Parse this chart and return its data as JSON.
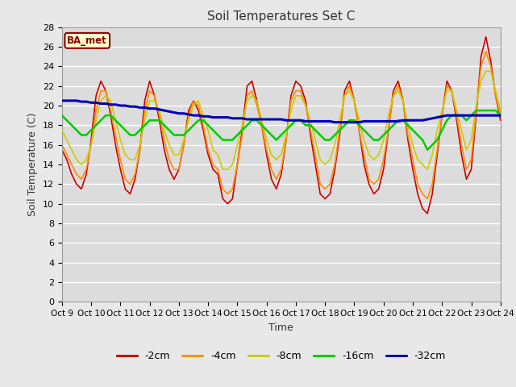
{
  "title": "Soil Temperatures Set C",
  "xlabel": "Time",
  "ylabel": "Soil Temperature (C)",
  "ylim": [
    0,
    28
  ],
  "xlim": [
    0,
    360
  ],
  "fig_bg_color": "#e8e8e8",
  "plot_bg_color": "#dcdcdc",
  "grid_color": "#ffffff",
  "label_box_text": "BA_met",
  "label_box_facecolor": "#ffffcc",
  "label_box_edgecolor": "#8B0000",
  "label_box_textcolor": "#8B0000",
  "x_tick_labels": [
    "Oct 9",
    "Oct 10",
    "Oct 11",
    "Oct 12",
    "Oct 13",
    "Oct 14",
    "Oct 15",
    "Oct 16",
    "Oct 17",
    "Oct 18",
    "Oct 19",
    "Oct 20",
    "Oct 21",
    "Oct 22",
    "Oct 23",
    "Oct 24"
  ],
  "line_colors": {
    "-2cm": "#cc0000",
    "-4cm": "#ff8c00",
    "-8cm": "#cccc00",
    "-16cm": "#00cc00",
    "-32cm": "#0000bb"
  },
  "line_widths": {
    "-2cm": 1.2,
    "-4cm": 1.2,
    "-8cm": 1.2,
    "-16cm": 1.8,
    "-32cm": 2.2
  },
  "t": [
    0,
    4,
    8,
    12,
    16,
    20,
    24,
    28,
    32,
    36,
    40,
    44,
    48,
    52,
    56,
    60,
    64,
    68,
    72,
    76,
    80,
    84,
    88,
    92,
    96,
    100,
    104,
    108,
    112,
    116,
    120,
    124,
    128,
    132,
    136,
    140,
    144,
    148,
    152,
    156,
    160,
    164,
    168,
    172,
    176,
    180,
    184,
    188,
    192,
    196,
    200,
    204,
    208,
    212,
    216,
    220,
    224,
    228,
    232,
    236,
    240,
    244,
    248,
    252,
    256,
    260,
    264,
    268,
    272,
    276,
    280,
    284,
    288,
    292,
    296,
    300,
    304,
    308,
    312,
    316,
    320,
    324,
    328,
    332,
    336,
    340,
    344,
    348,
    352,
    356,
    360
  ],
  "data_2cm": [
    15.5,
    14.5,
    13.0,
    12.0,
    11.5,
    13.0,
    16.5,
    21.0,
    22.5,
    21.5,
    19.0,
    16.0,
    13.5,
    11.5,
    11.0,
    12.5,
    15.5,
    20.5,
    22.5,
    21.0,
    18.5,
    15.5,
    13.5,
    12.5,
    13.5,
    16.0,
    19.5,
    20.5,
    19.5,
    17.5,
    15.0,
    13.5,
    13.0,
    10.5,
    10.0,
    10.5,
    14.0,
    17.5,
    22.0,
    22.5,
    20.5,
    18.0,
    15.0,
    12.5,
    11.5,
    13.0,
    16.5,
    21.0,
    22.5,
    22.0,
    20.5,
    17.0,
    14.0,
    11.0,
    10.5,
    11.0,
    13.5,
    17.0,
    21.5,
    22.5,
    20.5,
    17.5,
    14.0,
    12.0,
    11.0,
    11.5,
    13.5,
    17.5,
    21.5,
    22.5,
    20.5,
    16.5,
    13.5,
    11.0,
    9.5,
    9.0,
    11.0,
    15.0,
    19.0,
    22.5,
    21.5,
    18.5,
    15.0,
    12.5,
    13.5,
    19.0,
    25.0,
    27.0,
    24.5,
    21.0,
    18.5
  ],
  "data_4cm": [
    16.0,
    15.0,
    14.0,
    13.0,
    12.5,
    13.5,
    16.0,
    19.5,
    21.5,
    21.5,
    19.5,
    17.0,
    14.5,
    12.5,
    12.0,
    13.0,
    15.5,
    19.5,
    21.5,
    21.0,
    19.0,
    16.5,
    14.5,
    13.5,
    13.5,
    16.0,
    19.0,
    20.5,
    20.0,
    18.0,
    15.5,
    14.0,
    13.5,
    11.5,
    11.0,
    11.5,
    14.0,
    17.0,
    21.0,
    21.5,
    20.0,
    18.0,
    15.5,
    13.5,
    12.5,
    13.5,
    16.5,
    20.5,
    21.5,
    21.5,
    20.0,
    17.5,
    15.0,
    12.0,
    11.5,
    12.0,
    14.0,
    17.5,
    21.0,
    22.0,
    20.5,
    17.5,
    15.0,
    12.5,
    12.0,
    12.5,
    14.5,
    17.5,
    21.0,
    22.0,
    20.5,
    17.0,
    14.5,
    12.0,
    11.0,
    10.5,
    12.0,
    15.5,
    19.0,
    22.0,
    21.5,
    19.0,
    16.0,
    13.5,
    14.5,
    19.5,
    24.0,
    25.5,
    24.0,
    21.0,
    19.0
  ],
  "data_8cm": [
    17.5,
    16.5,
    15.5,
    14.5,
    14.0,
    14.5,
    16.0,
    18.5,
    20.5,
    21.0,
    20.5,
    18.5,
    16.5,
    15.0,
    14.5,
    14.5,
    16.0,
    18.5,
    20.5,
    20.5,
    19.5,
    17.5,
    16.0,
    15.0,
    15.0,
    16.5,
    18.5,
    20.0,
    20.5,
    19.0,
    17.5,
    15.5,
    15.0,
    13.5,
    13.5,
    14.0,
    16.0,
    18.0,
    20.5,
    21.0,
    20.5,
    18.5,
    16.5,
    15.0,
    14.5,
    15.0,
    17.0,
    19.5,
    21.0,
    21.0,
    20.0,
    18.5,
    16.5,
    14.5,
    14.0,
    14.5,
    16.0,
    18.5,
    21.0,
    21.5,
    20.5,
    18.5,
    16.5,
    15.0,
    14.5,
    15.0,
    16.5,
    19.0,
    21.0,
    21.5,
    20.5,
    18.0,
    16.0,
    14.5,
    14.0,
    13.5,
    15.0,
    17.5,
    19.5,
    21.5,
    21.5,
    19.5,
    17.5,
    15.5,
    16.5,
    20.0,
    22.5,
    23.5,
    23.5,
    21.5,
    19.5
  ],
  "data_16cm": [
    19.0,
    18.5,
    18.0,
    17.5,
    17.0,
    17.0,
    17.5,
    18.0,
    18.5,
    19.0,
    19.0,
    18.5,
    18.0,
    17.5,
    17.0,
    17.0,
    17.5,
    18.0,
    18.5,
    18.5,
    18.5,
    18.0,
    17.5,
    17.0,
    17.0,
    17.0,
    17.5,
    18.0,
    18.5,
    18.5,
    18.0,
    17.5,
    17.0,
    16.5,
    16.5,
    16.5,
    17.0,
    17.5,
    18.0,
    18.5,
    18.5,
    18.0,
    17.5,
    17.0,
    16.5,
    17.0,
    17.5,
    18.0,
    18.5,
    18.5,
    18.0,
    18.0,
    17.5,
    17.0,
    16.5,
    16.5,
    17.0,
    17.5,
    18.0,
    18.5,
    18.5,
    18.0,
    17.5,
    17.0,
    16.5,
    16.5,
    17.0,
    17.5,
    18.0,
    18.5,
    18.5,
    18.0,
    17.5,
    17.0,
    16.5,
    15.5,
    16.0,
    16.5,
    17.5,
    18.5,
    19.0,
    19.0,
    19.0,
    18.5,
    19.0,
    19.5,
    19.5,
    19.5,
    19.5,
    19.5,
    19.0
  ],
  "data_32cm": [
    20.5,
    20.5,
    20.5,
    20.5,
    20.4,
    20.4,
    20.3,
    20.3,
    20.2,
    20.2,
    20.1,
    20.1,
    20.0,
    20.0,
    19.9,
    19.9,
    19.8,
    19.8,
    19.7,
    19.7,
    19.6,
    19.5,
    19.4,
    19.3,
    19.2,
    19.2,
    19.1,
    19.0,
    19.0,
    18.9,
    18.9,
    18.8,
    18.8,
    18.8,
    18.8,
    18.7,
    18.7,
    18.7,
    18.6,
    18.6,
    18.6,
    18.6,
    18.6,
    18.6,
    18.6,
    18.6,
    18.5,
    18.5,
    18.5,
    18.5,
    18.4,
    18.4,
    18.4,
    18.4,
    18.4,
    18.4,
    18.3,
    18.3,
    18.3,
    18.3,
    18.3,
    18.3,
    18.4,
    18.4,
    18.4,
    18.4,
    18.4,
    18.4,
    18.4,
    18.4,
    18.5,
    18.5,
    18.5,
    18.5,
    18.5,
    18.6,
    18.7,
    18.8,
    18.9,
    19.0,
    19.0,
    19.0,
    19.0,
    19.0,
    19.0,
    19.0,
    19.0,
    19.0,
    19.0,
    19.0,
    19.0
  ]
}
